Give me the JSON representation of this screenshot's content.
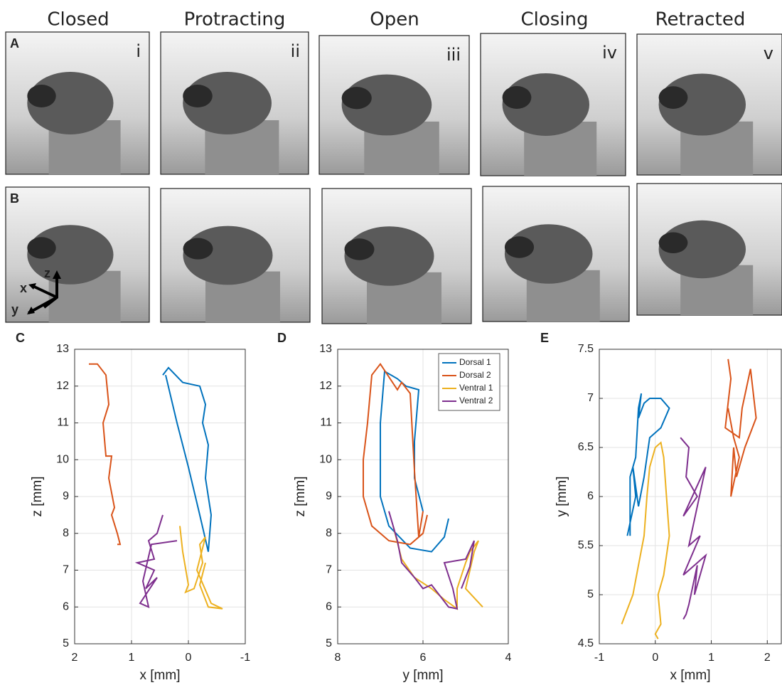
{
  "figure": {
    "stages": [
      "Closed",
      "Protracting",
      "Open",
      "Closing",
      "Retracted"
    ],
    "stage_numerals": [
      "i",
      "ii",
      "iii",
      "iv",
      "v"
    ],
    "photo_rows": [
      "A",
      "B"
    ],
    "axes_triad": [
      "z",
      "x",
      "y"
    ]
  },
  "chart_data": [
    {
      "type": "line",
      "panel": "C",
      "xlabel": "x [mm]",
      "ylabel": "z [mm]",
      "xlim": [
        2,
        -1
      ],
      "ylim": [
        5,
        13
      ],
      "xticks": [
        2,
        1,
        0,
        -1
      ],
      "yticks": [
        5,
        6,
        7,
        8,
        9,
        10,
        11,
        12,
        13
      ],
      "grid": true,
      "series": [
        {
          "color": "#0072bd",
          "x": [
            0.45,
            0.35,
            0.1,
            -0.2,
            -0.3,
            -0.25,
            -0.35,
            -0.3,
            -0.4,
            -0.35,
            -0.2,
            0,
            0.2,
            0.4
          ],
          "values": [
            12.3,
            12.5,
            12.1,
            12.0,
            11.5,
            11.0,
            10.4,
            9.5,
            8.5,
            7.5,
            8.5,
            9.8,
            11,
            12.3
          ]
        },
        {
          "color": "#d95319",
          "x": [
            1.75,
            1.6,
            1.45,
            1.4,
            1.5,
            1.45,
            1.35,
            1.4,
            1.3,
            1.35,
            1.25,
            1.2,
            1.25
          ],
          "values": [
            12.6,
            12.6,
            12.3,
            11.5,
            11,
            10.1,
            10.1,
            9.5,
            8.7,
            8.5,
            8.0,
            7.7,
            7.7
          ]
        },
        {
          "color": "#edb120",
          "x": [
            0.15,
            0.1,
            0,
            0.05,
            -0.1,
            -0.25,
            -0.2,
            -0.3,
            -0.15,
            -0.4,
            -0.6,
            -0.35,
            -0.2,
            -0.3
          ],
          "values": [
            8.2,
            7.5,
            6.6,
            6.4,
            6.5,
            7.2,
            7.7,
            7.9,
            7.0,
            6.1,
            5.95,
            6.0,
            6.6,
            7.2
          ]
        },
        {
          "color": "#7e2f8e",
          "x": [
            0.45,
            0.55,
            0.7,
            0.6,
            0.9,
            0.6,
            0.75,
            0.55,
            0.85,
            0.7,
            0.8,
            0.65,
            0.2
          ],
          "values": [
            8.5,
            8.0,
            7.8,
            7.3,
            7.2,
            7.0,
            6.5,
            6.8,
            6.1,
            6.0,
            6.7,
            7.7,
            7.8
          ]
        }
      ]
    },
    {
      "type": "line",
      "panel": "D",
      "xlabel": "y [mm]",
      "ylabel": "z [mm]",
      "xlim": [
        8,
        4
      ],
      "ylim": [
        5,
        13
      ],
      "xticks": [
        8,
        6,
        4
      ],
      "yticks": [
        5,
        6,
        7,
        8,
        9,
        10,
        11,
        12,
        13
      ],
      "grid": true,
      "legend": "upper right",
      "series": [
        {
          "name": "Dorsal 1",
          "color": "#0072bd",
          "x": [
            6.0,
            6.2,
            6.2,
            6.1,
            6.4,
            6.6,
            6.9,
            7.0,
            7.0,
            6.8,
            6.3,
            5.8,
            5.5,
            5.4
          ],
          "values": [
            8.6,
            9.5,
            10.5,
            11.9,
            12.0,
            12.2,
            12.4,
            11,
            9,
            8.2,
            7.6,
            7.5,
            7.9,
            8.4
          ]
        },
        {
          "name": "Dorsal 2",
          "color": "#d95319",
          "x": [
            6.0,
            6.1,
            6.2,
            6.3,
            6.5,
            6.6,
            7.0,
            7.2,
            7.3,
            7.4,
            7.4,
            7.2,
            6.8,
            6.3,
            6.0,
            5.9
          ],
          "values": [
            8.6,
            7.9,
            9.7,
            11.8,
            12.1,
            11.9,
            12.6,
            12.3,
            11,
            10,
            9,
            8.2,
            7.8,
            7.7,
            8.0,
            8.5
          ]
        },
        {
          "name": "Ventral 1",
          "color": "#edb120",
          "x": [
            6.7,
            6.5,
            6.2,
            5.8,
            5.5,
            5.2,
            5.2,
            5.0,
            4.9,
            4.7,
            4.8,
            5.0,
            4.6
          ],
          "values": [
            8.2,
            7.3,
            6.8,
            6.5,
            6.2,
            5.95,
            6.5,
            7.2,
            7.5,
            7.8,
            7.5,
            6.5,
            6.0
          ]
        },
        {
          "name": "Ventral 2",
          "color": "#7e2f8e",
          "x": [
            6.8,
            6.6,
            6.5,
            6.2,
            6.0,
            5.8,
            5.4,
            5.2,
            5.3,
            5.5,
            5.0,
            4.8,
            4.9,
            5.1
          ],
          "values": [
            8.6,
            7.8,
            7.2,
            6.8,
            6.5,
            6.6,
            6.0,
            5.95,
            6.5,
            7.2,
            7.3,
            7.8,
            7.1,
            6.5
          ]
        }
      ]
    },
    {
      "type": "line",
      "panel": "E",
      "xlabel": "x [mm]",
      "ylabel": "y [mm]",
      "xlim": [
        -1,
        2.25
      ],
      "ylim": [
        4.5,
        7.5
      ],
      "xticks": [
        -1,
        0,
        1,
        2
      ],
      "yticks": [
        4.5,
        5,
        5.5,
        6,
        6.5,
        7,
        7.5
      ],
      "grid": true,
      "series": [
        {
          "color": "#0072bd",
          "x": [
            -0.45,
            -0.45,
            -0.35,
            -0.3,
            -0.25,
            -0.3,
            -0.2,
            -0.1,
            0.1,
            0.25,
            0.1,
            -0.1,
            -0.2,
            -0.3,
            -0.4,
            -0.35,
            -0.5
          ],
          "values": [
            5.6,
            6.2,
            6.4,
            6.9,
            7.05,
            6.8,
            6.95,
            7.0,
            7.0,
            6.9,
            6.7,
            6.6,
            6.2,
            5.9,
            6.3,
            6.0,
            5.6
          ]
        },
        {
          "color": "#d95319",
          "x": [
            1.3,
            1.35,
            1.25,
            1.5,
            1.55,
            1.7,
            1.8,
            1.6,
            1.5,
            1.45,
            1.4,
            1.35,
            1.5,
            1.4,
            1.3
          ],
          "values": [
            7.4,
            7.2,
            6.7,
            6.6,
            6.9,
            7.3,
            6.8,
            6.5,
            6.3,
            6.2,
            6.5,
            6.0,
            6.4,
            6.6,
            6.9
          ]
        },
        {
          "color": "#edb120",
          "x": [
            -0.6,
            -0.4,
            -0.3,
            -0.2,
            -0.15,
            -0.1,
            0,
            0.1,
            0.15,
            0.2,
            0.25,
            0.15,
            0.05,
            0.1,
            0,
            0.05
          ],
          "values": [
            4.7,
            5.0,
            5.3,
            5.6,
            6.0,
            6.3,
            6.5,
            6.55,
            6.4,
            6.0,
            5.6,
            5.2,
            5.0,
            4.7,
            4.6,
            4.55
          ]
        },
        {
          "color": "#7e2f8e",
          "x": [
            0.45,
            0.6,
            0.55,
            0.75,
            0.5,
            0.9,
            0.6,
            0.8,
            0.5,
            0.9,
            0.7,
            0.75,
            0.6,
            0.55,
            0.5
          ],
          "values": [
            6.6,
            6.5,
            6.2,
            6.0,
            5.8,
            6.3,
            5.5,
            5.6,
            5.2,
            5.4,
            5.0,
            5.3,
            4.9,
            4.8,
            4.75
          ]
        }
      ]
    }
  ]
}
